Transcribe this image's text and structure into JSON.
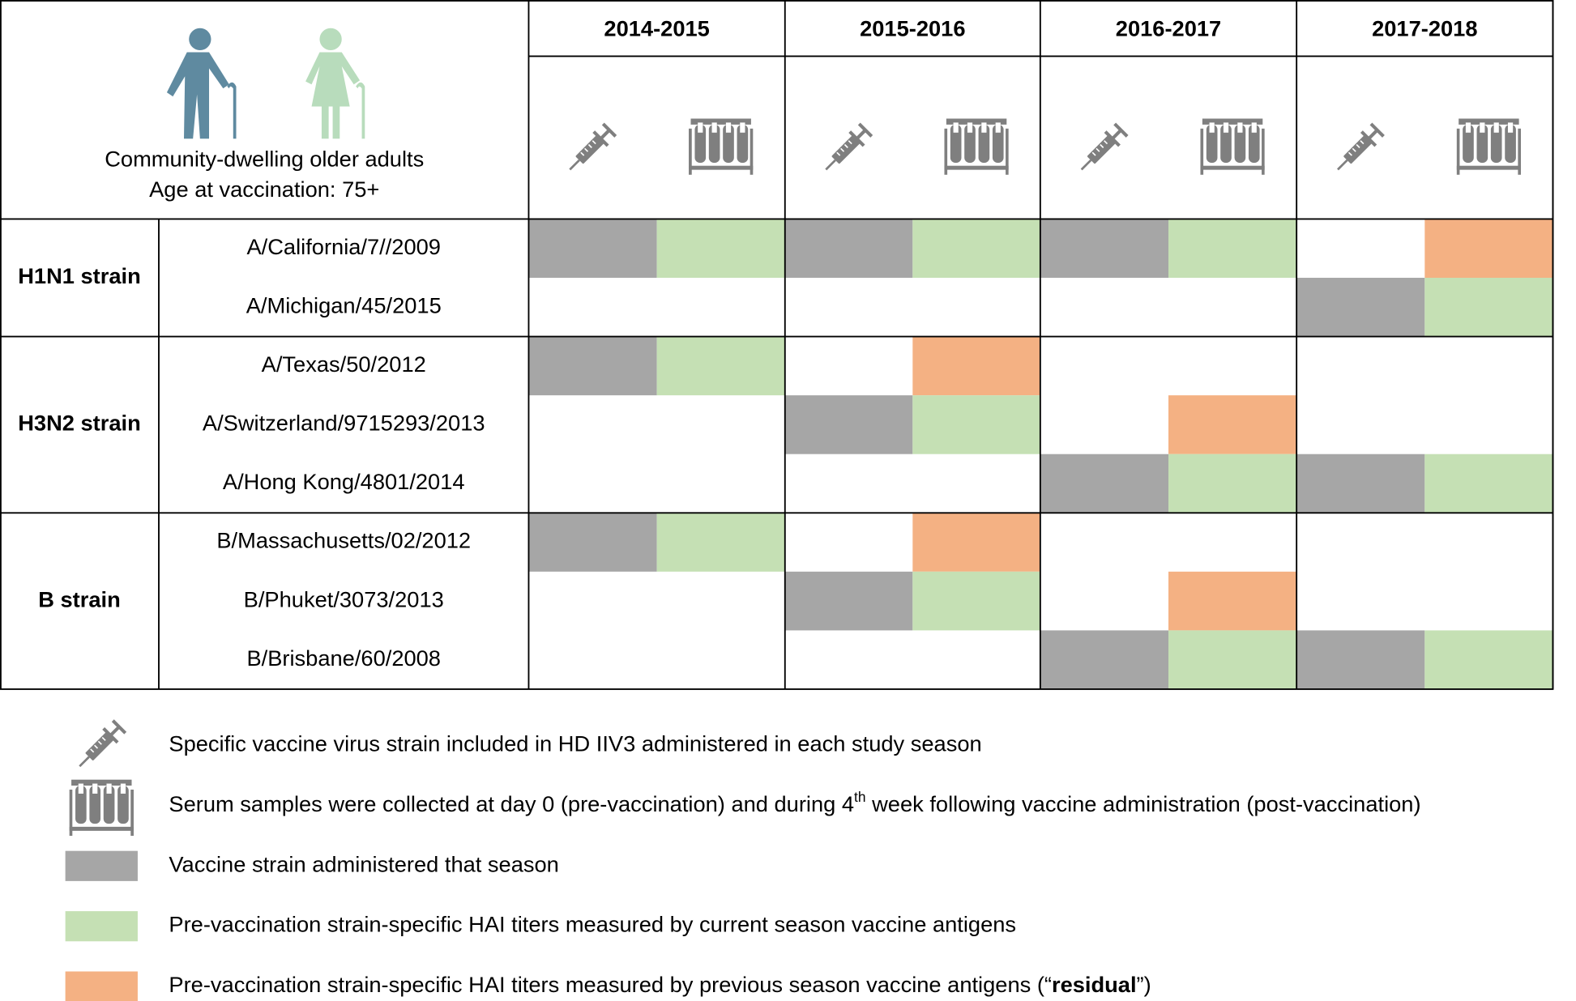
{
  "header": {
    "title_lines": [
      "Community-dwelling older adults",
      "Age at vaccination: 75+"
    ]
  },
  "seasons": [
    "2014-2015",
    "2015-2016",
    "2016-2017",
    "2017-2018"
  ],
  "colors": {
    "vaccine": "#a6a6a6",
    "current": "#c5e0b4",
    "residual": "#f4b183"
  },
  "groups": [
    {
      "label": "H1N1 strain",
      "strains": [
        {
          "name": "A/California/7//2009",
          "cells": [
            "vaccine",
            "vaccine",
            "vaccine",
            "residual"
          ]
        },
        {
          "name": "A/Michigan/45/2015",
          "cells": [
            null,
            null,
            null,
            "vaccine"
          ]
        }
      ]
    },
    {
      "label": "H3N2 strain",
      "strains": [
        {
          "name": "A/Texas/50/2012",
          "cells": [
            "vaccine",
            "residual",
            null,
            null
          ]
        },
        {
          "name": "A/Switzerland/9715293/2013",
          "cells": [
            null,
            "vaccine",
            "residual",
            null
          ]
        },
        {
          "name": "A/Hong Kong/4801/2014",
          "cells": [
            null,
            null,
            "vaccine",
            "vaccine"
          ]
        }
      ]
    },
    {
      "label": "B strain",
      "strains": [
        {
          "name": "B/Massachusetts/02/2012",
          "cells": [
            "vaccine",
            "residual",
            null,
            null
          ]
        },
        {
          "name": "B/Phuket/3073/2013",
          "cells": [
            null,
            "vaccine",
            "residual",
            null
          ]
        },
        {
          "name": "B/Brisbane/60/2008",
          "cells": [
            null,
            null,
            "vaccine",
            "vaccine"
          ]
        }
      ]
    }
  ],
  "legend": [
    {
      "key": "syringe",
      "parts": [
        {
          "text": "Specific vaccine virus strain included in HD IIV3 administered in each study season"
        }
      ]
    },
    {
      "key": "tubes",
      "parts": [
        {
          "text": "Serum samples were collected at day 0 (pre-vaccination) and during 4"
        },
        {
          "text": "th",
          "style": "sup"
        },
        {
          "text": " week following vaccine administration (post-vaccination)"
        }
      ]
    },
    {
      "key": "vaccine",
      "parts": [
        {
          "text": "Vaccine strain administered that season"
        }
      ]
    },
    {
      "key": "current",
      "parts": [
        {
          "text": "Pre-vaccination strain-specific HAI titers measured by current season vaccine antigens"
        }
      ]
    },
    {
      "key": "residual",
      "parts": [
        {
          "text": "Pre-vaccination strain-specific HAI titers measured by previous season vaccine antigens (“"
        },
        {
          "text": "residual",
          "style": "bold"
        },
        {
          "text": "”)"
        }
      ]
    }
  ]
}
